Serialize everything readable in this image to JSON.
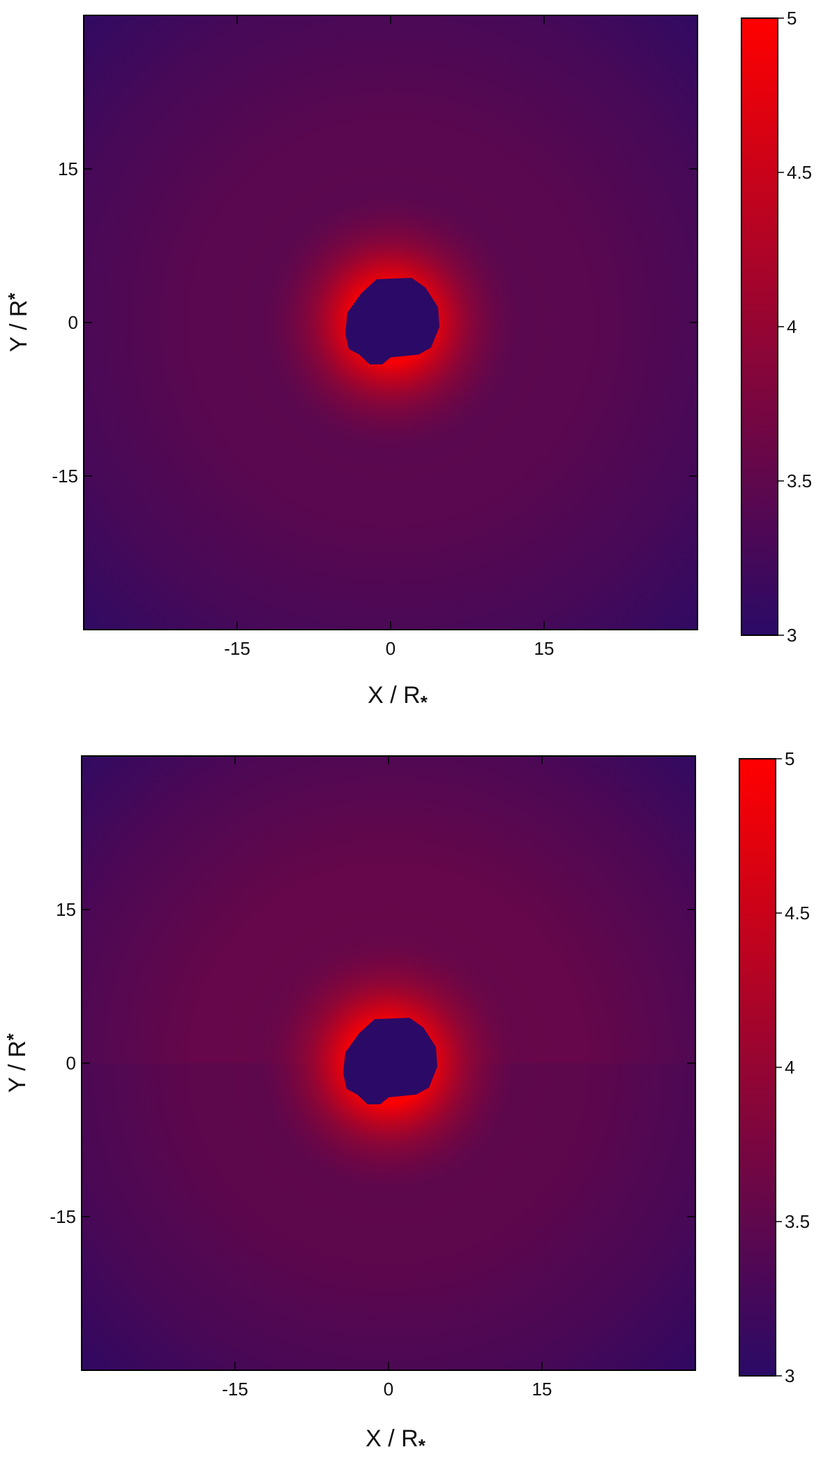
{
  "chart_data": [
    {
      "type": "heatmap",
      "title": "",
      "xlabel": "X / R",
      "xlabel_subscript": "*",
      "ylabel": "Y / R",
      "ylabel_subscript": "*",
      "xlim": [
        -30,
        30
      ],
      "ylim": [
        -30,
        30
      ],
      "x_ticks": [
        -15,
        0,
        15
      ],
      "y_ticks": [
        -15,
        0,
        15
      ],
      "x_tick_labels": [
        "-15",
        "0",
        "15"
      ],
      "y_tick_labels": [
        "-15",
        "0",
        "15"
      ],
      "colorbar": {
        "range": [
          3,
          5
        ],
        "ticks": [
          3,
          3.5,
          4,
          4.5,
          5
        ],
        "tick_labels": [
          "3",
          "3.5",
          "4",
          "4.5",
          "5"
        ],
        "colors": [
          "#2a0a66",
          "#ff0000"
        ]
      },
      "field": {
        "description_of_shape": "radial",
        "background_value": 3.05,
        "ring_peak_value": 3.5,
        "ring_radius": 14,
        "inner_peak_value": 4.9,
        "central_hole_radius": 4,
        "equatorial_discontinuity": false
      }
    },
    {
      "type": "heatmap",
      "title": "",
      "xlabel": "X / R",
      "xlabel_subscript": "*",
      "ylabel": "Y / R",
      "ylabel_subscript": "*",
      "xlim": [
        -30,
        30
      ],
      "ylim": [
        -30,
        30
      ],
      "x_ticks": [
        -15,
        0,
        15
      ],
      "y_ticks": [
        -15,
        0,
        15
      ],
      "x_tick_labels": [
        "-15",
        "0",
        "15"
      ],
      "y_tick_labels": [
        "-15",
        "0",
        "15"
      ],
      "colorbar": {
        "range": [
          3,
          5
        ],
        "ticks": [
          3,
          3.5,
          4,
          4.5,
          5
        ],
        "tick_labels": [
          "3",
          "3.5",
          "4",
          "4.5",
          "5"
        ],
        "colors": [
          "#2a0a66",
          "#ff0000"
        ]
      },
      "field": {
        "description_of_shape": "radial",
        "background_value": 3.05,
        "ring_peak_value": 3.6,
        "ring_radius": 14,
        "inner_peak_value": 4.95,
        "central_hole_radius": 4,
        "equatorial_discontinuity": true
      }
    }
  ]
}
